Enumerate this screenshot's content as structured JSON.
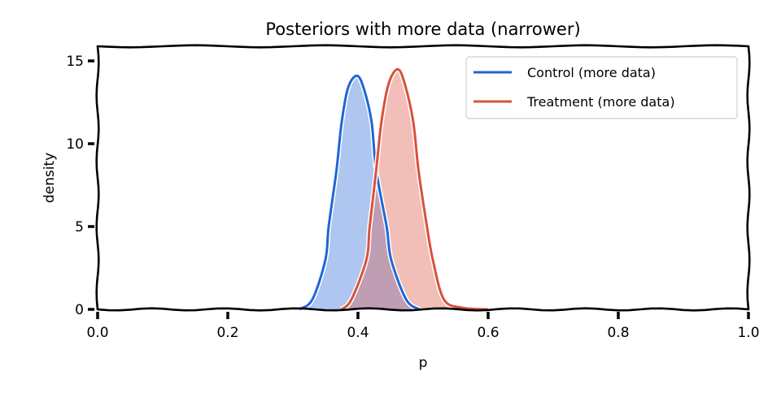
{
  "chart_data": {
    "type": "area",
    "title": "Posteriors with more data (narrower)",
    "xlabel": "p",
    "ylabel": "density",
    "xlim": [
      0.0,
      1.0
    ],
    "ylim": [
      0,
      15.9
    ],
    "x_ticks": [
      "0.0",
      "0.2",
      "0.4",
      "0.6",
      "0.8",
      "1.0"
    ],
    "x_tick_values": [
      0.0,
      0.2,
      0.4,
      0.6,
      0.8,
      1.0
    ],
    "y_ticks": [
      "0",
      "5",
      "10",
      "15"
    ],
    "y_tick_values": [
      0,
      5,
      10,
      15
    ],
    "grid": false,
    "legend_position": "upper right",
    "series": [
      {
        "name": "Control (more data)",
        "line_color": "#1f66d6",
        "fill_color": "#aec6f0",
        "peak": {
          "p": 0.399,
          "density": 14.1
        },
        "points": [
          [
            0.31,
            0.0
          ],
          [
            0.33,
            0.6
          ],
          [
            0.35,
            3.0
          ],
          [
            0.355,
            5.0
          ],
          [
            0.367,
            8.4
          ],
          [
            0.375,
            11.3
          ],
          [
            0.385,
            13.4
          ],
          [
            0.399,
            14.1
          ],
          [
            0.41,
            13.2
          ],
          [
            0.421,
            11.3
          ],
          [
            0.428,
            8.4
          ],
          [
            0.444,
            5.0
          ],
          [
            0.451,
            3.0
          ],
          [
            0.474,
            0.6
          ],
          [
            0.494,
            0.0
          ]
        ]
      },
      {
        "name": "Treatment (more data)",
        "line_color": "#d9503c",
        "fill_color": "#f2bfb8",
        "peak": {
          "p": 0.461,
          "density": 14.5
        },
        "points": [
          [
            0.375,
            0.0
          ],
          [
            0.39,
            0.6
          ],
          [
            0.413,
            3.0
          ],
          [
            0.418,
            5.0
          ],
          [
            0.428,
            8.4
          ],
          [
            0.436,
            11.3
          ],
          [
            0.447,
            13.6
          ],
          [
            0.461,
            14.5
          ],
          [
            0.472,
            13.6
          ],
          [
            0.485,
            11.3
          ],
          [
            0.493,
            8.4
          ],
          [
            0.506,
            5.0
          ],
          [
            0.515,
            3.0
          ],
          [
            0.532,
            0.6
          ],
          [
            0.56,
            0.1
          ],
          [
            0.6,
            0.0
          ]
        ]
      }
    ],
    "overlap_color": "#bf9db2"
  }
}
